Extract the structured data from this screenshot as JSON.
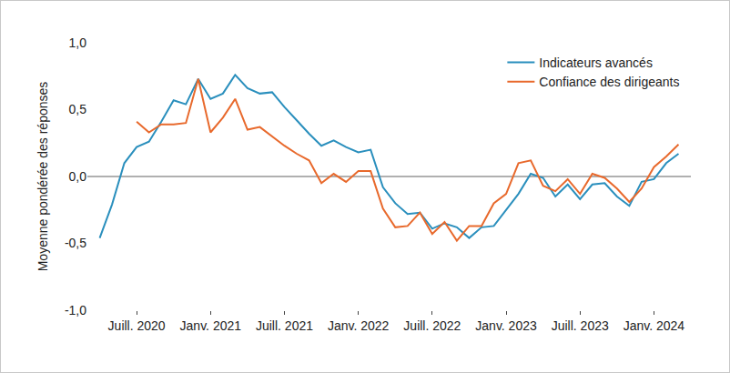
{
  "chart_data": {
    "type": "line",
    "y_label": "Moyenne pondérée des réponses",
    "categories": [
      null,
      null,
      null,
      "Juill. 2020",
      null,
      null,
      null,
      null,
      null,
      "Janv. 2021",
      null,
      null,
      null,
      null,
      null,
      "Juill. 2021",
      null,
      null,
      null,
      null,
      null,
      "Janv. 2022",
      null,
      null,
      null,
      null,
      null,
      "Juill. 2022",
      null,
      null,
      null,
      null,
      null,
      "Janv. 2023",
      null,
      null,
      null,
      null,
      null,
      "Juill. 2023",
      null,
      null,
      null,
      null,
      null,
      "Janv. 2024",
      null,
      null
    ],
    "series": [
      {
        "name": "Indicateurs avancés",
        "color": "#2a8fbd",
        "values": [
          -0.46,
          -0.21,
          0.1,
          0.22,
          0.26,
          0.41,
          0.57,
          0.54,
          0.73,
          0.58,
          0.62,
          0.76,
          0.66,
          0.62,
          0.63,
          0.52,
          0.42,
          0.32,
          0.23,
          0.27,
          0.22,
          0.18,
          0.2,
          -0.08,
          -0.2,
          -0.28,
          -0.27,
          -0.39,
          -0.35,
          -0.38,
          -0.46,
          -0.38,
          -0.37,
          -0.25,
          -0.13,
          0.02,
          -0.01,
          -0.15,
          -0.06,
          -0.17,
          -0.06,
          -0.05,
          -0.15,
          -0.22,
          -0.04,
          -0.02,
          0.1,
          0.17
        ]
      },
      {
        "name": "Confiance des dirigeants",
        "color": "#e8692c",
        "values": [
          null,
          null,
          null,
          0.41,
          0.33,
          0.39,
          0.39,
          0.4,
          0.73,
          0.33,
          0.44,
          0.58,
          0.35,
          0.37,
          0.3,
          0.23,
          0.17,
          0.12,
          -0.05,
          0.02,
          -0.04,
          0.04,
          0.04,
          -0.24,
          -0.38,
          -0.37,
          -0.27,
          -0.43,
          -0.34,
          -0.48,
          -0.37,
          -0.37,
          -0.2,
          -0.13,
          0.1,
          0.12,
          -0.07,
          -0.11,
          -0.02,
          -0.13,
          0.02,
          -0.01,
          -0.09,
          -0.19,
          -0.09,
          0.07,
          0.15,
          0.24
        ]
      }
    ],
    "ylim": [
      -1,
      1
    ],
    "yticks": [
      {
        "value": -1,
        "label": "-1,0"
      },
      {
        "value": -0.5,
        "label": "-0,5"
      },
      {
        "value": 0,
        "label": "0,0"
      },
      {
        "value": 0.5,
        "label": "0,5"
      },
      {
        "value": 1,
        "label": "1,0"
      }
    ],
    "grid": false,
    "legend": "top right"
  }
}
